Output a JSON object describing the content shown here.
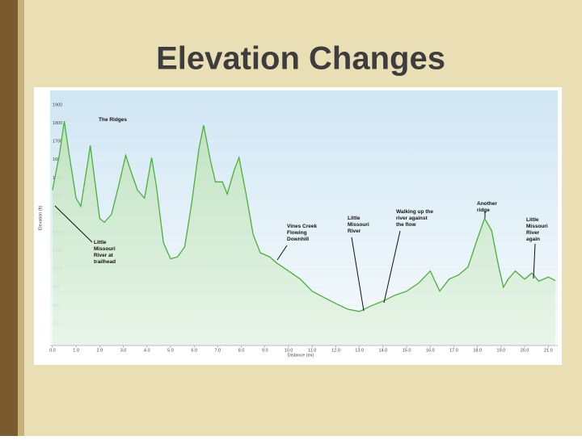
{
  "title": "Elevation Changes",
  "chart_data": {
    "type": "line",
    "xlabel": "Distance (mi)",
    "ylabel": "Elevation (ft)",
    "color": "#4caf3a",
    "x": [
      0.0,
      0.3,
      0.5,
      0.7,
      1.0,
      1.2,
      1.5,
      1.6,
      1.8,
      2.0,
      2.2,
      2.5,
      2.8,
      3.1,
      3.3,
      3.6,
      3.9,
      4.2,
      4.4,
      4.7,
      5.0,
      5.3,
      5.6,
      5.9,
      6.2,
      6.4,
      6.7,
      6.9,
      7.2,
      7.4,
      7.7,
      7.9,
      8.2,
      8.5,
      8.8,
      9.2,
      9.5,
      10.0,
      10.5,
      11.0,
      11.5,
      12.0,
      12.5,
      13.0,
      13.5,
      14.0,
      14.5,
      15.0,
      15.5,
      16.0,
      16.4,
      16.8,
      17.2,
      17.6,
      18.0,
      18.3,
      18.6,
      18.9,
      19.1,
      19.3,
      19.6,
      20.0,
      20.3,
      20.6,
      21.0,
      21.3
    ],
    "series": [
      {
        "name": "Elevation",
        "color": "#4caf3a",
        "values": [
          1433,
          1633,
          1811,
          1633,
          1389,
          1344,
          1589,
          1678,
          1478,
          1278,
          1256,
          1300,
          1456,
          1624,
          1544,
          1433,
          1389,
          1611,
          1456,
          1144,
          1056,
          1067,
          1122,
          1367,
          1656,
          1789,
          1589,
          1478,
          1478,
          1411,
          1544,
          1611,
          1411,
          1189,
          1089,
          1067,
          1033,
          989,
          944,
          878,
          844,
          811,
          780,
          767,
          798,
          824,
          856,
          878,
          922,
          989,
          878,
          944,
          967,
          1011,
          1167,
          1278,
          1211,
          1011,
          900,
          944,
          989,
          944,
          978,
          933,
          956,
          936
        ]
      }
    ],
    "xlim": [
      -0.1,
      21.4
    ],
    "ylim": [
      580,
      1980
    ],
    "xticks": [
      {
        "value": 0,
        "label": "0.0"
      },
      {
        "value": 1,
        "label": "1.0"
      },
      {
        "value": 2,
        "label": "2.0"
      },
      {
        "value": 3,
        "label": "3.0"
      },
      {
        "value": 4,
        "label": "4.0"
      },
      {
        "value": 5,
        "label": "5.0"
      },
      {
        "value": 6,
        "label": "6.0"
      },
      {
        "value": 7,
        "label": "7.0"
      },
      {
        "value": 8,
        "label": "8.0"
      },
      {
        "value": 9,
        "label": "9.0"
      },
      {
        "value": 10,
        "label": "10.0"
      },
      {
        "value": 11,
        "label": "11.0"
      },
      {
        "value": 12,
        "label": "12.0"
      },
      {
        "value": 13,
        "label": "13.0"
      },
      {
        "value": 14,
        "label": "14.0"
      },
      {
        "value": 15,
        "label": "15.0"
      },
      {
        "value": 16,
        "label": "16.0"
      },
      {
        "value": 17,
        "label": "17.0"
      },
      {
        "value": 18,
        "label": "18.0"
      },
      {
        "value": 19,
        "label": "19.0"
      },
      {
        "value": 20,
        "label": "20.0"
      },
      {
        "value": 21,
        "label": "21.0"
      }
    ],
    "yticks": [
      700,
      800,
      900,
      1000,
      1100,
      1200,
      1300,
      1400,
      1500,
      1600,
      1700,
      1800,
      1900
    ],
    "annotations": [
      {
        "lines": [
          "The Ridges"
        ]
      },
      {
        "lines": [
          "Little",
          "Missouri",
          "River at",
          "trailhead"
        ]
      },
      {
        "lines": [
          "Vines Creek",
          "Flowing",
          "Downhill"
        ]
      },
      {
        "lines": [
          "Little",
          "Missouri",
          "River"
        ]
      },
      {
        "lines": [
          "Walking up the",
          "river against",
          "the flow"
        ]
      },
      {
        "lines": [
          "Another",
          "ridge"
        ]
      },
      {
        "lines": [
          "Little",
          "Missouri",
          "River",
          "again"
        ]
      }
    ]
  }
}
